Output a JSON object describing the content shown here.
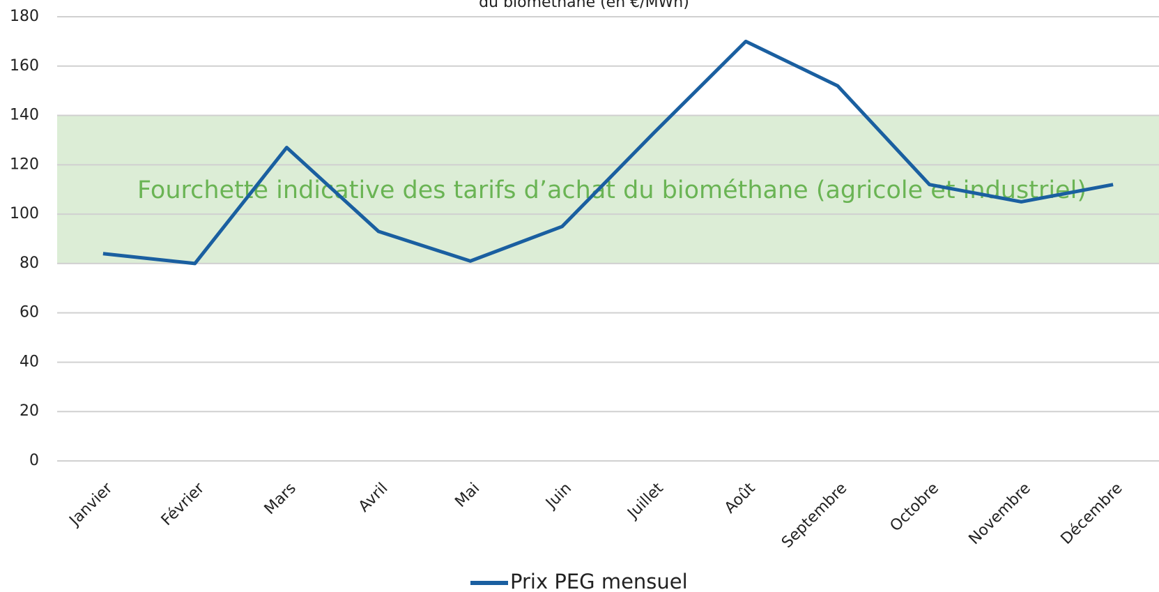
{
  "chart_data": {
    "type": "line",
    "title": "du biométhane (en €/MWh)",
    "categories": [
      "Janvier",
      "Février",
      "Mars",
      "Avril",
      "Mai",
      "Juin",
      "Juillet",
      "Août",
      "Septembre",
      "Octobre",
      "Novembre",
      "Décembre"
    ],
    "series": [
      {
        "name": "Prix PEG mensuel",
        "color": "#1a5fa0",
        "values": [
          84,
          80,
          127,
          93,
          81,
          95,
          133,
          170,
          152,
          112,
          105,
          112
        ]
      }
    ],
    "band": {
      "range": [
        80,
        140
      ],
      "label": "Fourchette indicative des tarifs d’achat du biométhane (agricole et industriel)",
      "color": "#dcedd6",
      "text_color": "#6ab454"
    },
    "ylim": [
      0,
      180
    ],
    "yticks": [
      0,
      20,
      40,
      60,
      80,
      100,
      120,
      140,
      160,
      180
    ],
    "grid": true,
    "legend": "bottom"
  }
}
